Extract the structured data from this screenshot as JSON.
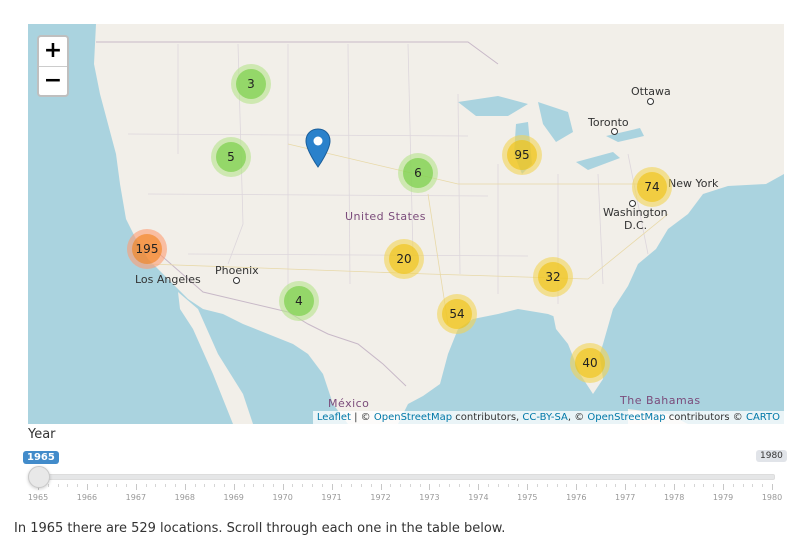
{
  "zoom": {
    "in_label": "+",
    "out_label": "−"
  },
  "clusters": [
    {
      "count": "3",
      "color": "green"
    },
    {
      "count": "5",
      "color": "green"
    },
    {
      "count": "6",
      "color": "green"
    },
    {
      "count": "4",
      "color": "green"
    },
    {
      "count": "95",
      "color": "yellow"
    },
    {
      "count": "74",
      "color": "yellow"
    },
    {
      "count": "20",
      "color": "yellow"
    },
    {
      "count": "32",
      "color": "yellow"
    },
    {
      "count": "54",
      "color": "yellow"
    },
    {
      "count": "40",
      "color": "yellow"
    },
    {
      "count": "195",
      "color": "orange"
    }
  ],
  "places": {
    "ottawa": "Ottawa",
    "toronto": "Toronto",
    "new_york": "New York",
    "washington": "Washington",
    "dc": "D.C.",
    "united_states": "United States",
    "phoenix": "Phoenix",
    "los_angeles": "Los Angeles",
    "mexico": "México",
    "bahamas": "The Bahamas"
  },
  "attribution": {
    "leaflet": "Leaflet",
    "sep1": " | © ",
    "osm1": "OpenStreetMap",
    "contributors1": " contributors, ",
    "ccbysa": "CC-BY-SA",
    "sep2": ", © ",
    "osm2": "OpenStreetMap",
    "contributors2": " contributors © ",
    "carto": "CARTO"
  },
  "slider": {
    "label": "Year",
    "min_badge": "1965",
    "max_badge": "1980",
    "value": 1965,
    "min": 1965,
    "max": 1980,
    "ticks": [
      "1965",
      "1966",
      "1967",
      "1968",
      "1969",
      "1970",
      "1971",
      "1972",
      "1973",
      "1974",
      "1975",
      "1976",
      "1977",
      "1978",
      "1979",
      "1980"
    ]
  },
  "summary": "In 1965 there are 529 locations. Scroll through each one in the table below.",
  "colors": {
    "water": "#aad3df",
    "land": "#f2efe9",
    "marker": "#2a81cb",
    "slider_badge": "#428bca"
  }
}
